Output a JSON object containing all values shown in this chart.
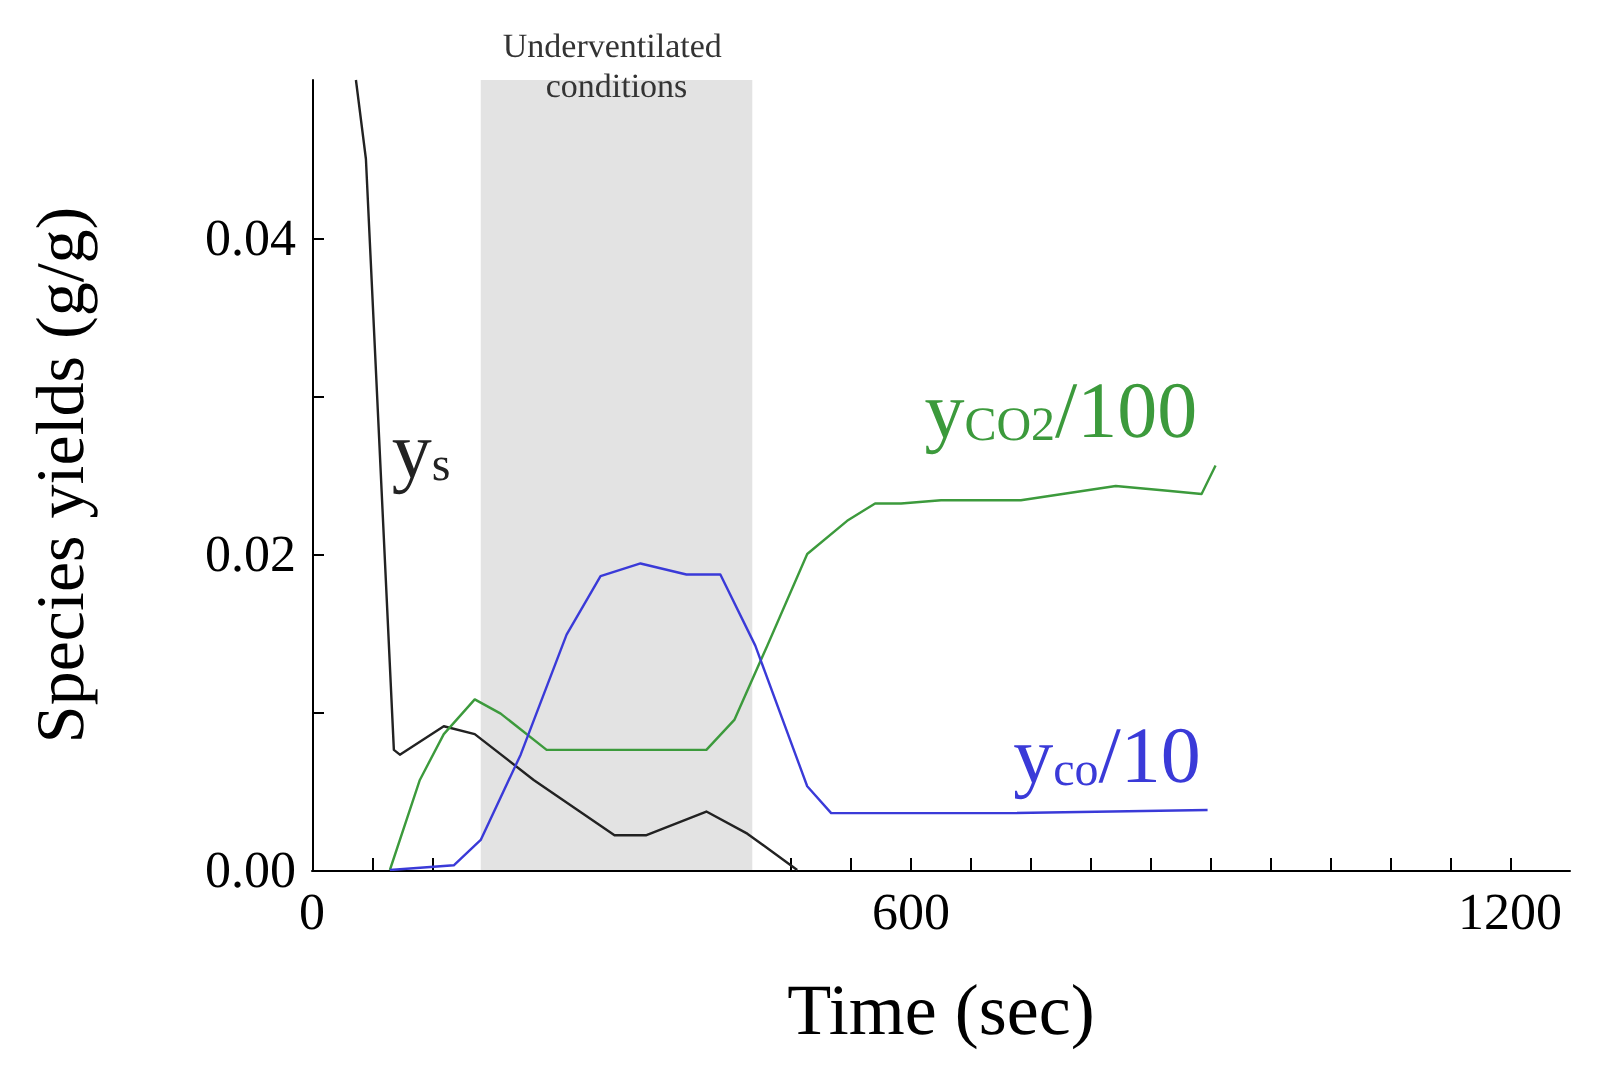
{
  "chart_data": {
    "type": "line",
    "xlabel": "Time (sec)",
    "ylabel": "Species yields (g/g)",
    "marker": "none",
    "xlim": [
      0,
      1260
    ],
    "ylim": [
      0,
      0.05
    ],
    "xticks": [
      0,
      {
        "value": 60,
        "label": null
      },
      {
        "value": 120,
        "label": null
      },
      {
        "value": 180,
        "label": null
      },
      {
        "value": 240,
        "label": null
      },
      {
        "value": 300,
        "label": null
      },
      {
        "value": 360,
        "label": null
      },
      {
        "value": 420,
        "label": null
      },
      {
        "value": 480,
        "label": null
      },
      {
        "value": 540,
        "label": null
      },
      600,
      {
        "value": 660,
        "label": null
      },
      {
        "value": 720,
        "label": null
      },
      {
        "value": 780,
        "label": null
      },
      {
        "value": 840,
        "label": null
      },
      {
        "value": 900,
        "label": null
      },
      {
        "value": 960,
        "label": null
      },
      {
        "value": 1020,
        "label": null
      },
      {
        "value": 1080,
        "label": null
      },
      {
        "value": 1140,
        "label": null
      },
      1200
    ],
    "yticks": [
      {
        "value": 0,
        "label": "0.00"
      },
      {
        "value": 0.01,
        "label": null
      },
      {
        "value": 0.02,
        "label": "0.02"
      },
      {
        "value": 0.03,
        "label": null
      },
      {
        "value": 0.04,
        "label": "0.04"
      }
    ],
    "bands": [
      {
        "axis": "x",
        "from": 169,
        "to": 441,
        "label": "Underventilated conditions",
        "color": "#e3e3e3"
      }
    ],
    "series": [
      {
        "name": "y$_{s}$",
        "color": "#222222",
        "x": [
          44,
          54,
          82,
          88,
          132,
          163,
          222,
          303,
          335,
          395,
          436,
          486
        ],
        "values": [
          0.05,
          0.045,
          0.0076,
          0.0073,
          0.0091,
          0.0086,
          0.0057,
          0.0022,
          0.0022,
          0.0037,
          0.0023,
          0
        ]
      },
      {
        "name": "y$_{CO2}$/100",
        "color": "#3c9a3c",
        "x": [
          78,
          108,
          132,
          163,
          189,
          235,
          323,
          395,
          423,
          456,
          496,
          536,
          564,
          590,
          630,
          710,
          805,
          857,
          891,
          905
        ],
        "values": [
          0,
          0.0057,
          0.0086,
          0.0108,
          0.0099,
          0.0076,
          0.0076,
          0.0076,
          0.0095,
          0.0142,
          0.02,
          0.0221,
          0.0232,
          0.0232,
          0.0234,
          0.0234,
          0.0243,
          0.024,
          0.0238,
          0.0256
        ]
      },
      {
        "name": "y$_{co}$/10",
        "color": "#3a3ad8",
        "x": [
          78,
          142,
          169,
          209,
          255,
          289,
          329,
          375,
          409,
          444,
          496,
          520,
          696,
          897
        ],
        "values": [
          0,
          0.0003,
          0.0019,
          0.0073,
          0.0149,
          0.0186,
          0.0194,
          0.0187,
          0.0187,
          0.0142,
          0.0053,
          0.0036,
          0.0036,
          0.0038
        ]
      }
    ]
  }
}
